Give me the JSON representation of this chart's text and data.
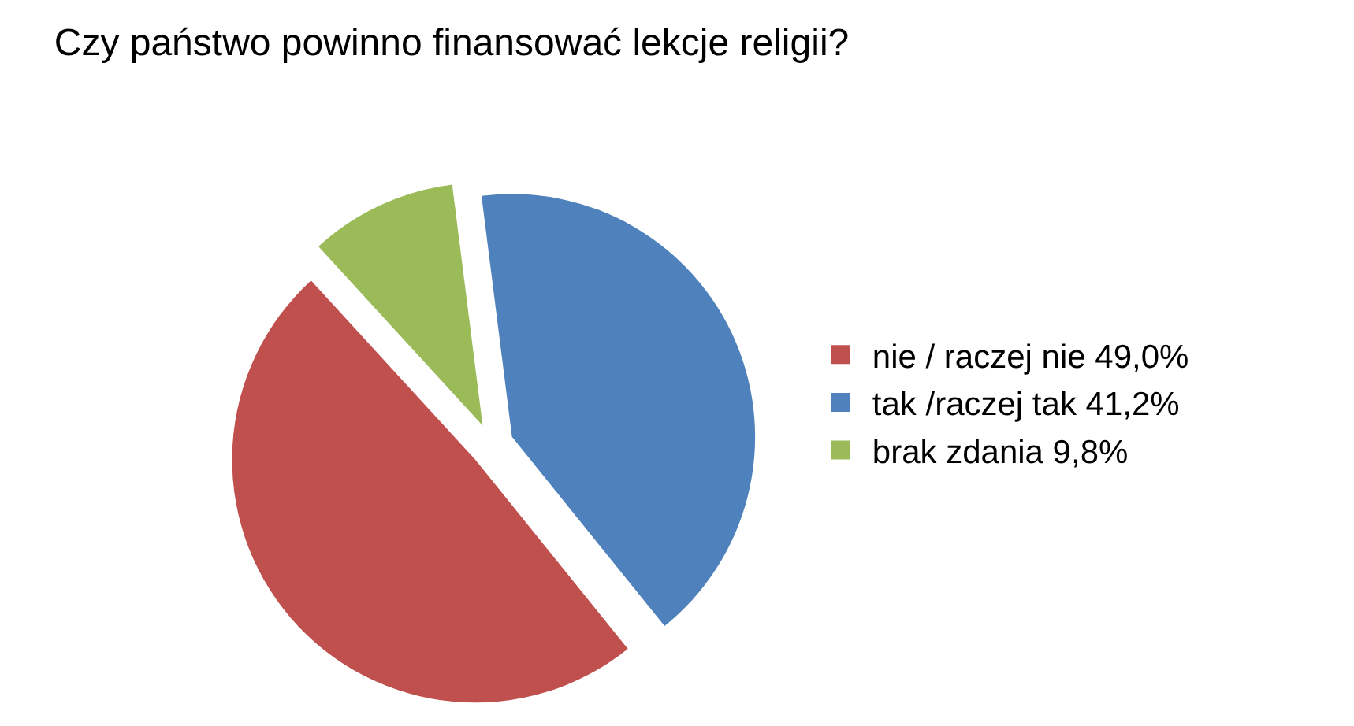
{
  "chart_data": {
    "type": "pie",
    "title": "Czy państwo powinno finansować lekcje religii?",
    "categories": [
      "nie / raczej nie 49,0%",
      "tak /raczej tak 41,2%",
      "brak zdania 9,8%"
    ],
    "values": [
      49.0,
      41.2,
      9.8
    ],
    "colors": [
      "#c0504d",
      "#4f81bd",
      "#9bbb59"
    ],
    "legend": "right"
  }
}
